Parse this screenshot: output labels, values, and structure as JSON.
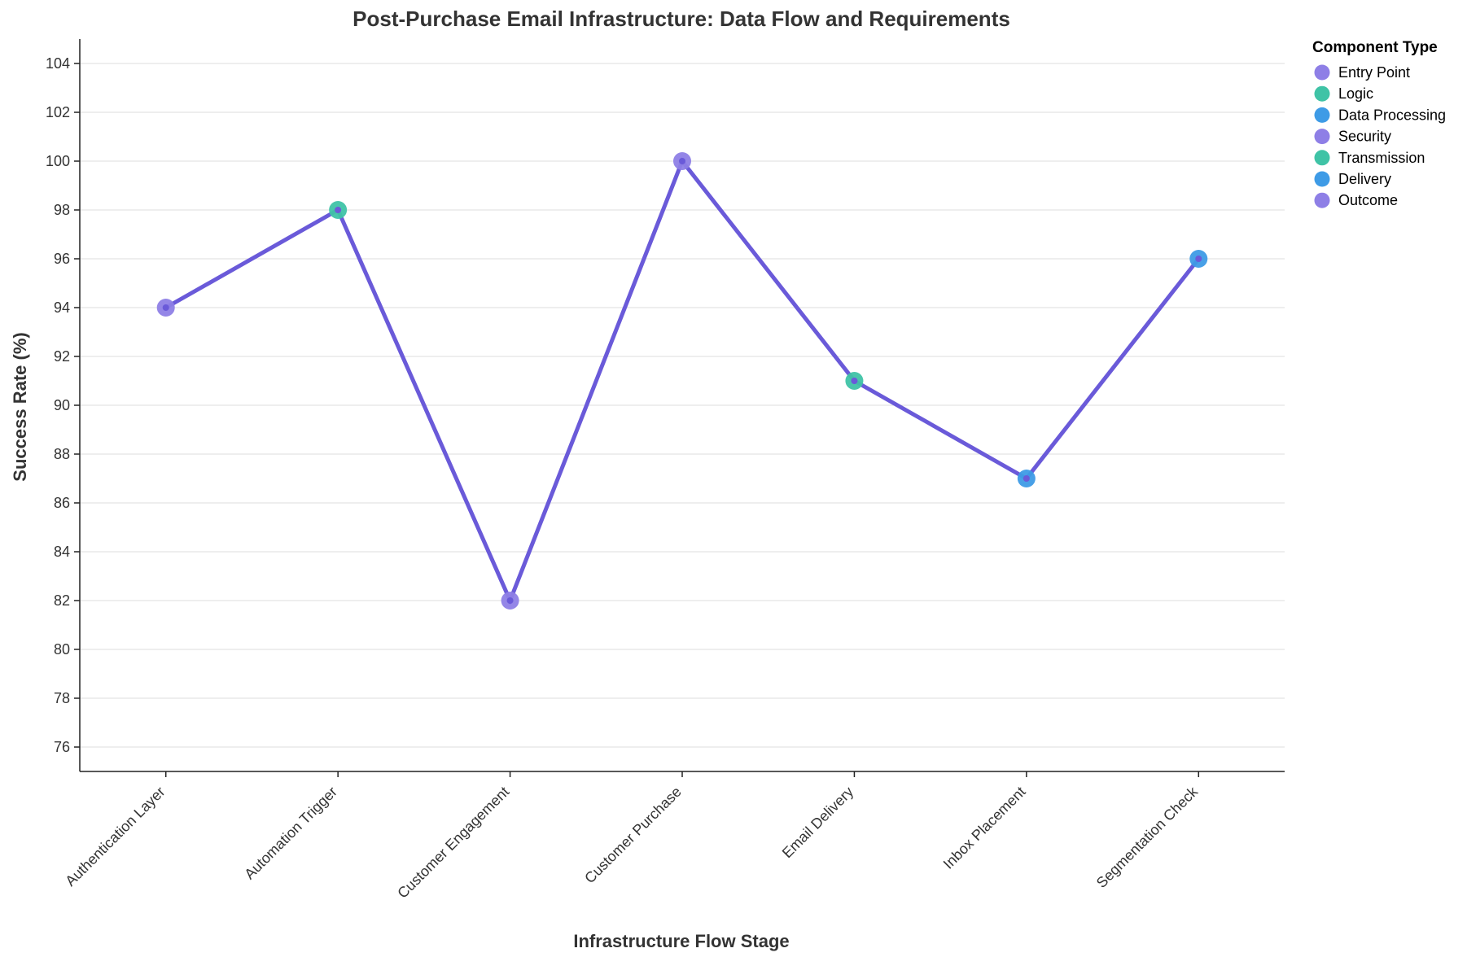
{
  "chart_data": {
    "type": "line",
    "title": "Post-Purchase Email Infrastructure: Data Flow and Requirements",
    "xlabel": "Infrastructure Flow Stage",
    "ylabel": "Success Rate (%)",
    "ylim": [
      75,
      105
    ],
    "yticks": [
      76,
      78,
      80,
      82,
      84,
      86,
      88,
      90,
      92,
      94,
      96,
      98,
      100,
      102,
      104
    ],
    "grid": true,
    "legend_position": "top-right",
    "line_color": "#6a5ad9",
    "categories": [
      "Authentication Layer",
      "Automation Trigger",
      "Customer Engagement",
      "Customer Purchase",
      "Email Delivery",
      "Inbox Placement",
      "Segmentation Check"
    ],
    "values": [
      94,
      98,
      82,
      100,
      91,
      87,
      96
    ],
    "point_types": [
      "Security",
      "Logic",
      "Outcome",
      "Entry Point",
      "Transmission",
      "Delivery",
      "Data Processing"
    ],
    "legend": {
      "title": "Component Type",
      "entries": [
        {
          "label": "Entry Point",
          "color": "#8e7fe6"
        },
        {
          "label": "Logic",
          "color": "#3fc3a6"
        },
        {
          "label": "Data Processing",
          "color": "#3e9be6"
        },
        {
          "label": "Security",
          "color": "#8e7fe6"
        },
        {
          "label": "Transmission",
          "color": "#3fc3a6"
        },
        {
          "label": "Delivery",
          "color": "#3e9be6"
        },
        {
          "label": "Outcome",
          "color": "#8e7fe6"
        }
      ]
    }
  }
}
